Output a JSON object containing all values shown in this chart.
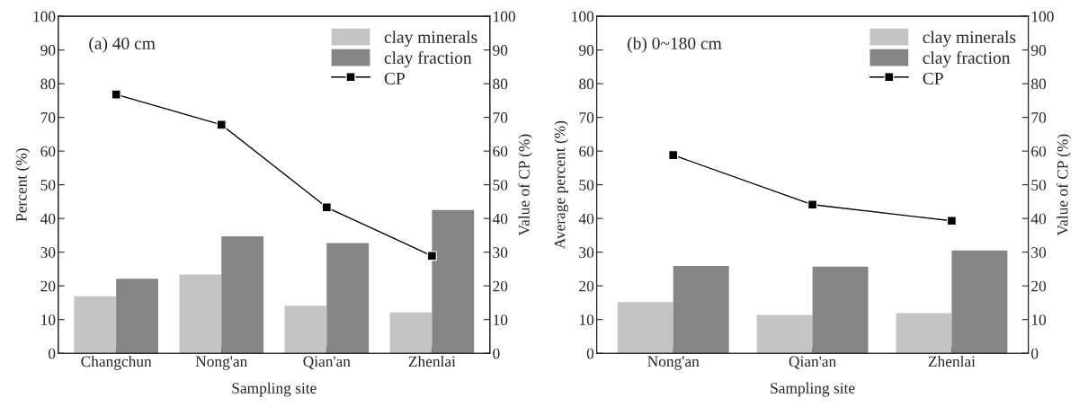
{
  "chart_data": [
    {
      "type": "bar",
      "annotations": [
        "(a) 40 cm"
      ],
      "xlabel": "Sampling site",
      "ylabel": "Percent (%)",
      "y2label": "Value of CP (%)",
      "categories": [
        "Changchun",
        "Nong'an",
        "Qian'an",
        "Zhenlai"
      ],
      "series": [
        {
          "name": "clay minerals",
          "color": "#c4c4c4",
          "values": [
            16.9,
            23.4,
            14.1,
            12.1
          ]
        },
        {
          "name": "clay fraction",
          "color": "#858585",
          "values": [
            22.1,
            34.7,
            32.7,
            42.5
          ]
        },
        {
          "name": "CP",
          "type": "line",
          "axis": "y2",
          "color": "#000000",
          "marker": "square",
          "values": [
            76.8,
            67.8,
            43.3,
            28.9
          ]
        }
      ],
      "ylim": [
        0,
        100
      ],
      "yticks": [
        0,
        10,
        20,
        30,
        40,
        50,
        60,
        70,
        80,
        90,
        100
      ],
      "y2lim": [
        0,
        100
      ],
      "y2ticks": [
        0,
        10,
        20,
        30,
        40,
        50,
        60,
        70,
        80,
        90,
        100
      ],
      "grid": false,
      "legend": "top right"
    },
    {
      "type": "bar",
      "annotations": [
        "(b) 0~180 cm"
      ],
      "xlabel": "Sampling site",
      "ylabel": "Average percent (%)",
      "y2label": "Value of CP (%)",
      "categories": [
        "Nong'an",
        "Qian'an",
        "Zhenlai"
      ],
      "series": [
        {
          "name": "clay minerals",
          "color": "#c4c4c4",
          "values": [
            15.2,
            11.4,
            11.9
          ]
        },
        {
          "name": "clay fraction",
          "color": "#858585",
          "values": [
            25.9,
            25.7,
            30.5
          ]
        },
        {
          "name": "CP",
          "type": "line",
          "axis": "y2",
          "color": "#000000",
          "marker": "square",
          "values": [
            58.8,
            44.1,
            39.3
          ]
        }
      ],
      "ylim": [
        0,
        100
      ],
      "yticks": [
        0,
        10,
        20,
        30,
        40,
        50,
        60,
        70,
        80,
        90,
        100
      ],
      "y2lim": [
        0,
        100
      ],
      "y2ticks": [
        0,
        10,
        20,
        30,
        40,
        50,
        60,
        70,
        80,
        90,
        100
      ],
      "grid": false,
      "legend": "top right"
    }
  ]
}
